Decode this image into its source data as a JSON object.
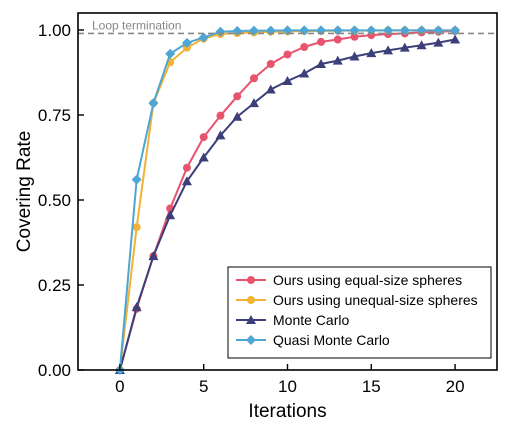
{
  "chart_data": {
    "type": "line",
    "xlabel": "Iterations",
    "ylabel": "Covering Rate",
    "xlim": [
      -2.5,
      22.5
    ],
    "ylim": [
      0,
      1.05
    ],
    "xticks": [
      0,
      5,
      10,
      15,
      20
    ],
    "xtick_labels": [
      "0",
      "5",
      "10",
      "15",
      "20"
    ],
    "yticks": [
      0,
      0.25,
      0.5,
      0.75,
      1.0
    ],
    "ytick_labels": [
      "0.00",
      "0.25",
      "0.50",
      "0.75",
      "1.00"
    ],
    "grid": false,
    "legend_position": "lower-right",
    "reference_line": {
      "y": 0.99,
      "label": "Loop termination",
      "style": "dashed",
      "color": "#888888"
    },
    "x": [
      0,
      1,
      2,
      3,
      4,
      5,
      6,
      7,
      8,
      9,
      10,
      11,
      12,
      13,
      14,
      15,
      16,
      17,
      18,
      19,
      20
    ],
    "series": [
      {
        "name": "Ours using equal-size spheres",
        "color": "#e8546e",
        "marker": "circle",
        "values": [
          0.0,
          0.18,
          0.335,
          0.475,
          0.595,
          0.685,
          0.748,
          0.805,
          0.858,
          0.9,
          0.928,
          0.95,
          0.965,
          0.972,
          0.98,
          0.985,
          0.988,
          0.99,
          0.993,
          0.995,
          0.997
        ]
      },
      {
        "name": "Ours using unequal-size spheres",
        "color": "#f2b233",
        "marker": "circle",
        "values": [
          0.0,
          0.42,
          0.785,
          0.905,
          0.948,
          0.975,
          0.988,
          0.991,
          0.993,
          0.995,
          0.996,
          0.997,
          0.997,
          0.998,
          0.998,
          0.998,
          0.999,
          0.999,
          0.999,
          0.999,
          0.999
        ]
      },
      {
        "name": "Monte Carlo",
        "color": "#3c3f7a",
        "marker": "triangle",
        "values": [
          0.0,
          0.185,
          0.335,
          0.455,
          0.555,
          0.625,
          0.69,
          0.745,
          0.785,
          0.825,
          0.85,
          0.872,
          0.9,
          0.91,
          0.922,
          0.932,
          0.94,
          0.948,
          0.955,
          0.963,
          0.972
        ]
      },
      {
        "name": "Quasi Monte Carlo",
        "color": "#4da6d6",
        "marker": "diamond",
        "values": [
          0.0,
          0.56,
          0.785,
          0.93,
          0.962,
          0.978,
          0.995,
          0.997,
          0.998,
          0.998,
          0.999,
          0.999,
          0.999,
          0.999,
          0.999,
          0.999,
          0.999,
          0.999,
          0.999,
          0.999,
          0.999
        ]
      }
    ]
  }
}
